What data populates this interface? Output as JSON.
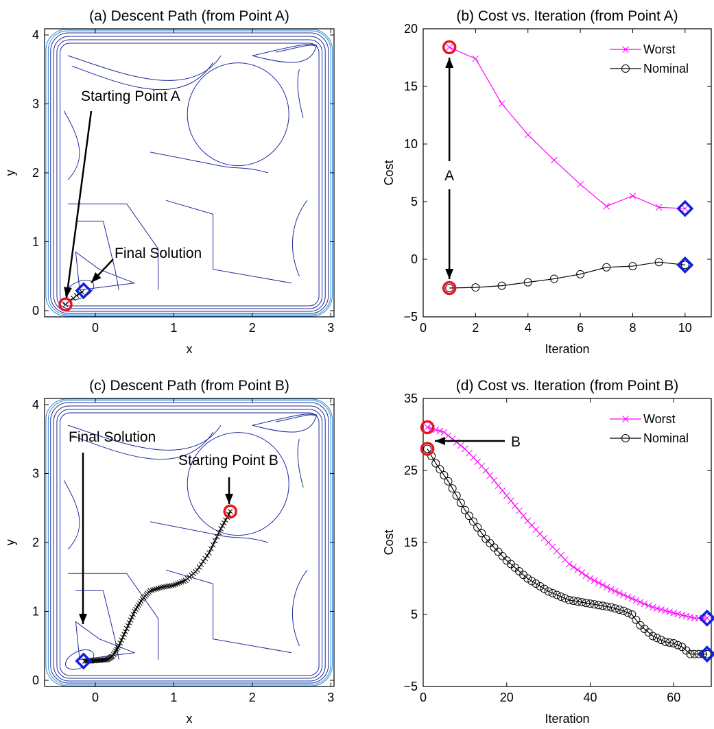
{
  "chart_data": [
    {
      "type": "contour",
      "title": "(a) Descent Path (from Point A)",
      "xlabel": "x",
      "ylabel": "y",
      "xlim": [
        -0.65,
        3.05
      ],
      "ylim": [
        -0.1,
        4.1
      ],
      "xticks": [
        "0",
        "1",
        "2",
        "3"
      ],
      "yticks": [
        "0",
        "1",
        "2",
        "3",
        "4"
      ],
      "start": {
        "x": -0.38,
        "y": 0.09
      },
      "final": {
        "x": -0.15,
        "y": 0.29
      },
      "path": {
        "x": [
          -0.38,
          -0.33,
          -0.28,
          -0.24,
          -0.2,
          -0.17,
          -0.15
        ],
        "y": [
          0.09,
          0.14,
          0.18,
          0.22,
          0.25,
          0.27,
          0.29
        ]
      },
      "annotations": [
        "Starting Point A",
        "Final Solution"
      ]
    },
    {
      "type": "line",
      "title": "(b) Cost vs. Iteration (from Point A)",
      "xlabel": "Iteration",
      "ylabel": "Cost",
      "xlim": [
        0,
        11
      ],
      "ylim": [
        -5,
        20
      ],
      "xticks": [
        "0",
        "2",
        "4",
        "6",
        "8",
        "10"
      ],
      "yticks": [
        "−5",
        "0",
        "5",
        "10",
        "15",
        "20"
      ],
      "legend": {
        "position": "top-right"
      },
      "series": [
        {
          "name": "Worst",
          "color": "#ff00ff",
          "marker": "x",
          "x": [
            1,
            2,
            3,
            4,
            5,
            6,
            7,
            8,
            9,
            10
          ],
          "values": [
            18.4,
            17.4,
            13.5,
            10.8,
            8.6,
            6.5,
            4.6,
            5.5,
            4.5,
            4.4
          ]
        },
        {
          "name": "Nominal",
          "color": "#000000",
          "marker": "o",
          "x": [
            1,
            2,
            3,
            4,
            5,
            6,
            7,
            8,
            9,
            10
          ],
          "values": [
            -2.5,
            -2.45,
            -2.3,
            -2.0,
            -1.7,
            -1.3,
            -0.7,
            -0.6,
            -0.25,
            -0.5
          ]
        }
      ],
      "annotations": [
        "A"
      ]
    },
    {
      "type": "contour",
      "title": "(c) Descent Path (from Point B)",
      "xlabel": "x",
      "ylabel": "y",
      "xlim": [
        -0.65,
        3.05
      ],
      "ylim": [
        -0.1,
        4.1
      ],
      "xticks": [
        "0",
        "1",
        "2",
        "3"
      ],
      "yticks": [
        "0",
        "1",
        "2",
        "3",
        "4"
      ],
      "start": {
        "x": 1.72,
        "y": 2.45
      },
      "final": {
        "x": -0.15,
        "y": 0.28
      },
      "path": {
        "x": [
          1.72,
          1.6,
          1.45,
          1.3,
          1.15,
          1.0,
          0.85,
          0.7,
          0.6,
          0.5,
          0.4,
          0.3,
          0.22,
          0.15,
          0.05,
          -0.05,
          -0.15
        ],
        "y": [
          2.45,
          2.2,
          1.85,
          1.6,
          1.45,
          1.38,
          1.35,
          1.3,
          1.18,
          1.0,
          0.75,
          0.5,
          0.35,
          0.3,
          0.29,
          0.28,
          0.28
        ]
      },
      "annotations": [
        "Final Solution",
        "Starting Point B"
      ]
    },
    {
      "type": "line",
      "title": "(d) Cost vs. Iteration (from Point B)",
      "xlabel": "Iteration",
      "ylabel": "Cost",
      "xlim": [
        0,
        69
      ],
      "ylim": [
        -5,
        35
      ],
      "xticks": [
        "0",
        "20",
        "40",
        "60"
      ],
      "yticks": [
        "−5",
        "5",
        "15",
        "25",
        "35"
      ],
      "legend": {
        "position": "top-right"
      },
      "series": [
        {
          "name": "Worst",
          "color": "#ff00ff",
          "marker": "x",
          "x": [
            1,
            5,
            10,
            15,
            20,
            25,
            30,
            35,
            40,
            45,
            50,
            55,
            60,
            65,
            68
          ],
          "values": [
            31,
            30.3,
            28,
            25,
            21.5,
            18,
            15,
            12,
            10,
            8.5,
            7.2,
            6,
            5.2,
            4.5,
            4.5
          ]
        },
        {
          "name": "Nominal",
          "color": "#000000",
          "marker": "o",
          "x": [
            1,
            3,
            6,
            10,
            15,
            20,
            25,
            30,
            35,
            40,
            45,
            48,
            50,
            52,
            55,
            58,
            60,
            62,
            64,
            66,
            68
          ],
          "values": [
            28,
            26,
            23.5,
            19.5,
            15.5,
            12.5,
            10,
            8.2,
            7,
            6.5,
            6,
            5.5,
            5,
            3.5,
            2,
            1.2,
            1,
            0.5,
            -0.5,
            -0.5,
            -0.5
          ]
        }
      ],
      "annotations": [
        "B"
      ]
    }
  ],
  "colors": {
    "worst": "#ff00ff",
    "nominal": "#000000",
    "start_marker": "#e8141c",
    "final_marker": "#1020e0",
    "contour_dark": "#1e2a9a",
    "contour_light": "#2b8ad8"
  }
}
